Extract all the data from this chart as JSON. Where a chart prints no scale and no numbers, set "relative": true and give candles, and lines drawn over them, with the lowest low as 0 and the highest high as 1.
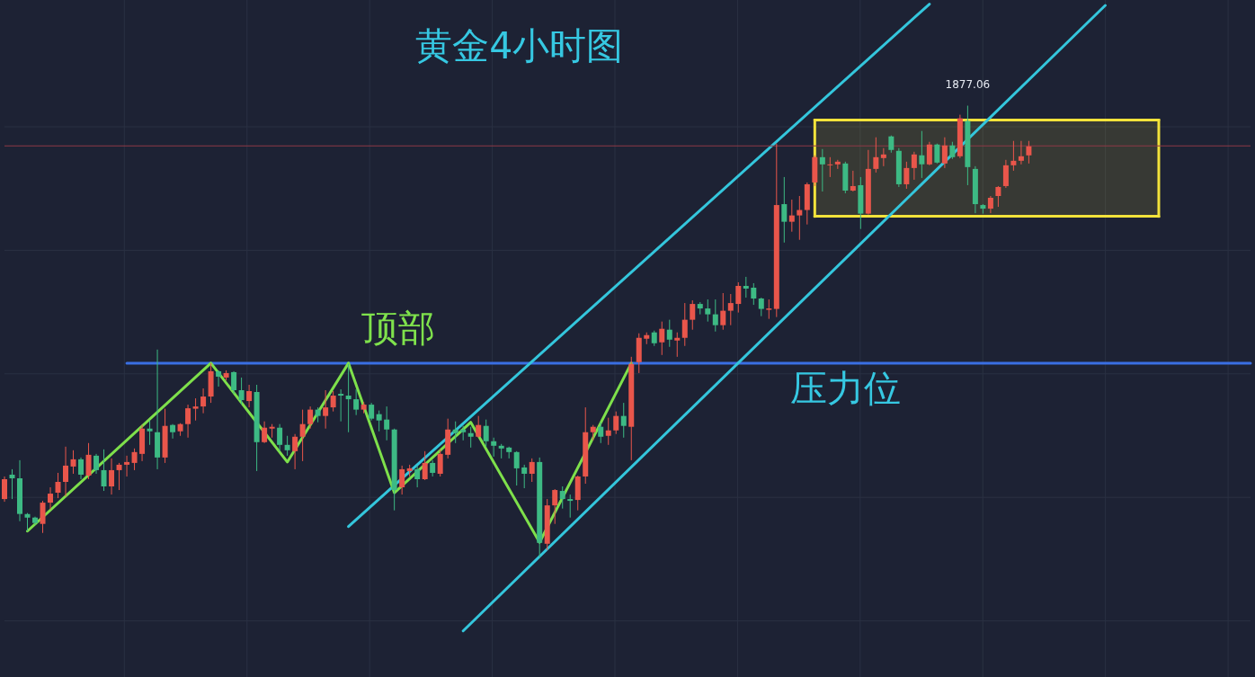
{
  "chart_data": {
    "type": "candlestick",
    "title": "黄金4小时图",
    "relative": true,
    "grid": true,
    "annotations": [
      "顶部",
      {
        "text": "1877.06",
        "y": 1
      }
    ],
    "categories": [
      null,
      null,
      null,
      null,
      null,
      null,
      null,
      null,
      null,
      null,
      null,
      null,
      null,
      null,
      null,
      null,
      null,
      null,
      null,
      null,
      null,
      null,
      null,
      null,
      null,
      null,
      null,
      null,
      null,
      null,
      null,
      null,
      null,
      null,
      null,
      null,
      null,
      null,
      null,
      null,
      null,
      null,
      null,
      null,
      null,
      null,
      null,
      null,
      null,
      null,
      null,
      null,
      null,
      null,
      null,
      null,
      null,
      null,
      null,
      null,
      null,
      null,
      null,
      null,
      null,
      null,
      null,
      null,
      null,
      null,
      null,
      null,
      null,
      null,
      null,
      null,
      null,
      null,
      null,
      null,
      null,
      null,
      null,
      null,
      null,
      null,
      null,
      null,
      null,
      null,
      null,
      null,
      null,
      null,
      null,
      null,
      null,
      null,
      null,
      null,
      null,
      null,
      null,
      null,
      null,
      null,
      null,
      null,
      null,
      null,
      null,
      null,
      null,
      null,
      null,
      null,
      null,
      null,
      null,
      null,
      null,
      null,
      null,
      null,
      null,
      null,
      null,
      null,
      null,
      null,
      null,
      null,
      null,
      null,
      null,
      null,
      null,
      null,
      null,
      null,
      null,
      null,
      null,
      null,
      null,
      null,
      null,
      null,
      null,
      null,
      null,
      null,
      null,
      null,
      null,
      null,
      null,
      null,
      null,
      null,
      null,
      null,
      null,
      null
    ],
    "ohlc": [
      [
        0.129,
        0.179,
        0.123,
        0.173
      ],
      [
        0.183,
        0.195,
        0.129,
        0.175
      ],
      [
        0.175,
        0.215,
        0.08,
        0.096
      ],
      [
        0.096,
        0.098,
        0.058,
        0.088
      ],
      [
        0.088,
        0.09,
        0.072,
        0.076
      ],
      [
        0.074,
        0.125,
        0.054,
        0.121
      ],
      [
        0.121,
        0.155,
        0.106,
        0.141
      ],
      [
        0.143,
        0.187,
        0.131,
        0.167
      ],
      [
        0.167,
        0.245,
        0.135,
        0.203
      ],
      [
        0.201,
        0.237,
        0.185,
        0.217
      ],
      [
        0.217,
        0.221,
        0.173,
        0.183
      ],
      [
        0.181,
        0.253,
        0.173,
        0.227
      ],
      [
        0.225,
        0.229,
        0.185,
        0.193
      ],
      [
        0.193,
        0.239,
        0.147,
        0.157
      ],
      [
        0.157,
        0.219,
        0.139,
        0.193
      ],
      [
        0.193,
        0.209,
        0.149,
        0.205
      ],
      [
        0.205,
        0.225,
        0.179,
        0.211
      ],
      [
        0.209,
        0.241,
        0.193,
        0.233
      ],
      [
        0.229,
        0.293,
        0.213,
        0.285
      ],
      [
        0.285,
        0.303,
        0.249,
        0.279
      ],
      [
        0.277,
        0.46,
        0.195,
        0.221
      ],
      [
        0.221,
        0.329,
        0.209,
        0.291
      ],
      [
        0.293,
        0.295,
        0.263,
        0.277
      ],
      [
        0.279,
        0.297,
        0.269,
        0.295
      ],
      [
        0.295,
        0.338,
        0.265,
        0.33
      ],
      [
        0.329,
        0.352,
        0.303,
        0.334
      ],
      [
        0.334,
        0.374,
        0.319,
        0.356
      ],
      [
        0.356,
        0.43,
        0.342,
        0.412
      ],
      [
        0.412,
        0.414,
        0.378,
        0.4
      ],
      [
        0.398,
        0.414,
        0.392,
        0.408
      ],
      [
        0.41,
        0.412,
        0.362,
        0.37
      ],
      [
        0.37,
        0.398,
        0.338,
        0.348
      ],
      [
        0.346,
        0.382,
        0.332,
        0.368
      ],
      [
        0.366,
        0.382,
        0.191,
        0.255
      ],
      [
        0.255,
        0.301,
        0.253,
        0.287
      ],
      [
        0.285,
        0.295,
        0.265,
        0.289
      ],
      [
        0.287,
        0.295,
        0.235,
        0.249
      ],
      [
        0.249,
        0.269,
        0.225,
        0.237
      ],
      [
        0.235,
        0.273,
        0.195,
        0.267
      ],
      [
        0.267,
        0.327,
        0.213,
        0.295
      ],
      [
        0.295,
        0.334,
        0.285,
        0.327
      ],
      [
        0.327,
        0.332,
        0.299,
        0.313
      ],
      [
        0.313,
        0.37,
        0.285,
        0.332
      ],
      [
        0.332,
        0.368,
        0.323,
        0.358
      ],
      [
        0.362,
        0.372,
        0.301,
        0.358
      ],
      [
        0.358,
        0.428,
        0.277,
        0.35
      ],
      [
        0.35,
        0.372,
        0.315,
        0.327
      ],
      [
        0.327,
        0.344,
        0.319,
        0.338
      ],
      [
        0.338,
        0.342,
        0.303,
        0.307
      ],
      [
        0.317,
        0.325,
        0.279,
        0.303
      ],
      [
        0.305,
        0.334,
        0.259,
        0.283
      ],
      [
        0.283,
        0.285,
        0.104,
        0.149
      ],
      [
        0.155,
        0.203,
        0.139,
        0.195
      ],
      [
        0.191,
        0.205,
        0.179,
        0.197
      ],
      [
        0.195,
        0.203,
        0.155,
        0.173
      ],
      [
        0.173,
        0.235,
        0.171,
        0.209
      ],
      [
        0.209,
        0.215,
        0.179,
        0.187
      ],
      [
        0.185,
        0.239,
        0.179,
        0.229
      ],
      [
        0.227,
        0.307,
        0.219,
        0.283
      ],
      [
        0.283,
        0.301,
        0.253,
        0.275
      ],
      [
        0.283,
        0.291,
        0.259,
        0.277
      ],
      [
        0.275,
        0.289,
        0.243,
        0.267
      ],
      [
        0.267,
        0.313,
        0.265,
        0.293
      ],
      [
        0.291,
        0.305,
        0.245,
        0.257
      ],
      [
        0.257,
        0.265,
        0.223,
        0.247
      ],
      [
        0.247,
        0.251,
        0.219,
        0.241
      ],
      [
        0.243,
        0.245,
        0.219,
        0.233
      ],
      [
        0.233,
        0.235,
        0.159,
        0.197
      ],
      [
        0.199,
        0.205,
        0.153,
        0.185
      ],
      [
        0.185,
        0.219,
        0.167,
        0.211
      ],
      [
        0.211,
        0.221,
        0,
        0.032
      ],
      [
        0.03,
        0.129,
        0.016,
        0.115
      ],
      [
        0.115,
        0.151,
        0.074,
        0.149
      ],
      [
        0.147,
        0.157,
        0.108,
        0.129
      ],
      [
        0.129,
        0.139,
        0.088,
        0.125
      ],
      [
        0.127,
        0.181,
        0.104,
        0.179
      ],
      [
        0.179,
        0.332,
        0.163,
        0.277
      ],
      [
        0.277,
        0.293,
        0.259,
        0.289
      ],
      [
        0.289,
        0.299,
        0.253,
        0.267
      ],
      [
        0.269,
        0.309,
        0.249,
        0.281
      ],
      [
        0.281,
        0.323,
        0.273,
        0.313
      ],
      [
        0.313,
        0.342,
        0.265,
        0.291
      ],
      [
        0.289,
        0.444,
        0.215,
        0.428
      ],
      [
        0.432,
        0.496,
        0.408,
        0.486
      ],
      [
        0.484,
        0.498,
        0.472,
        0.492
      ],
      [
        0.498,
        0.502,
        0.468,
        0.474
      ],
      [
        0.476,
        0.522,
        0.448,
        0.506
      ],
      [
        0.504,
        0.526,
        0.466,
        0.482
      ],
      [
        0.48,
        0.498,
        0.444,
        0.486
      ],
      [
        0.486,
        0.563,
        0.468,
        0.526
      ],
      [
        0.526,
        0.569,
        0.504,
        0.561
      ],
      [
        0.561,
        0.565,
        0.538,
        0.551
      ],
      [
        0.551,
        0.571,
        0.522,
        0.538
      ],
      [
        0.538,
        0.571,
        0.5,
        0.514
      ],
      [
        0.514,
        0.585,
        0.504,
        0.546
      ],
      [
        0.546,
        0.583,
        0.514,
        0.563
      ],
      [
        0.561,
        0.609,
        0.542,
        0.601
      ],
      [
        0.601,
        0.621,
        0.575,
        0.595
      ],
      [
        0.597,
        0.607,
        0.559,
        0.573
      ],
      [
        0.573,
        0.575,
        0.534,
        0.55
      ],
      [
        0.548,
        0.571,
        0.528,
        0.551
      ],
      [
        0.55,
        0.916,
        0.532,
        0.78
      ],
      [
        0.782,
        0.842,
        0.697,
        0.743
      ],
      [
        0.743,
        0.792,
        0.721,
        0.757
      ],
      [
        0.757,
        0.8,
        0.703,
        0.769
      ],
      [
        0.769,
        0.83,
        0.737,
        0.826
      ],
      [
        0.83,
        0.89,
        0.822,
        0.886
      ],
      [
        0.886,
        0.904,
        0.81,
        0.87
      ],
      [
        0.868,
        0.886,
        0.842,
        0.87
      ],
      [
        0.87,
        0.88,
        0.86,
        0.876
      ],
      [
        0.872,
        0.876,
        0.806,
        0.812
      ],
      [
        0.812,
        0.856,
        0.81,
        0.822
      ],
      [
        0.824,
        0.842,
        0.727,
        0.761
      ],
      [
        0.761,
        0.902,
        0.759,
        0.86
      ],
      [
        0.86,
        0.93,
        0.852,
        0.886
      ],
      [
        0.884,
        0.906,
        0.866,
        0.892
      ],
      [
        0.932,
        0.934,
        0.896,
        0.902
      ],
      [
        0.9,
        0.906,
        0.82,
        0.826
      ],
      [
        0.826,
        0.876,
        0.816,
        0.862
      ],
      [
        0.862,
        0.898,
        0.836,
        0.892
      ],
      [
        0.89,
        0.944,
        0.84,
        0.87
      ],
      [
        0.87,
        0.92,
        0.868,
        0.914
      ],
      [
        0.914,
        0.916,
        0.872,
        0.874
      ],
      [
        0.872,
        0.93,
        0.862,
        0.912
      ],
      [
        0.912,
        0.92,
        0.882,
        0.886
      ],
      [
        0.888,
        0.98,
        0.884,
        0.972
      ],
      [
        0.966,
        1,
        0.824,
        0.864
      ],
      [
        0.86,
        0.866,
        0.762,
        0.782
      ],
      [
        0.78,
        0.782,
        0.761,
        0.772
      ],
      [
        0.772,
        0.8,
        0.762,
        0.796
      ],
      [
        0.8,
        0.822,
        0.776,
        0.82
      ],
      [
        0.822,
        0.88,
        0.818,
        0.868
      ],
      [
        0.868,
        0.922,
        0.856,
        0.878
      ],
      [
        0.878,
        0.922,
        0.87,
        0.888
      ],
      [
        0.89,
        0.922,
        0.872,
        0.91
      ],
      null,
      null,
      null,
      null,
      null,
      null,
      null,
      null,
      null,
      null,
      null,
      null,
      null,
      null,
      null,
      null,
      null,
      null,
      null,
      null,
      null,
      null,
      null,
      null,
      null,
      null,
      null,
      null,
      null
    ],
    "colors": [
      "#e9564b",
      "#3dba84",
      "#3dba84",
      "#3dba84",
      "#3dba84",
      "#e9564b",
      "#e9564b",
      "#e9564b",
      "#e9564b",
      "#e9564b",
      "#3dba84",
      "#e9564b",
      "#3dba84",
      "#3dba84",
      "#e9564b",
      "#e9564b",
      "#e9564b",
      "#e9564b",
      "#e9564b",
      "#3dba84",
      "#3dba84",
      "#e9564b",
      "#3dba84",
      "#e9564b",
      "#e9564b",
      "#e9564b",
      "#e9564b",
      "#e9564b",
      "#3dba84",
      "#e9564b",
      "#3dba84",
      "#3dba84",
      "#e9564b",
      "#3dba84",
      "#e9564b",
      "#e9564b",
      "#3dba84",
      "#3dba84",
      "#e9564b",
      "#e9564b",
      "#e9564b",
      "#3dba84",
      "#e9564b",
      "#e9564b",
      "#3dba84",
      "#3dba84",
      "#3dba84",
      "#e9564b",
      "#3dba84",
      "#3dba84",
      "#3dba84",
      "#3dba84",
      "#e9564b",
      "#e9564b",
      "#3dba84",
      "#e9564b",
      "#3dba84",
      "#e9564b",
      "#e9564b",
      "#3dba84",
      "#3dba84",
      "#3dba84",
      "#e9564b",
      "#3dba84",
      "#3dba84",
      "#3dba84",
      "#3dba84",
      "#3dba84",
      "#3dba84",
      "#e9564b",
      "#3dba84",
      "#e9564b",
      "#e9564b",
      "#3dba84",
      "#3dba84",
      "#e9564b",
      "#e9564b",
      "#e9564b",
      "#3dba84",
      "#e9564b",
      "#e9564b",
      "#3dba84",
      "#e9564b",
      "#e9564b",
      "#e9564b",
      "#3dba84",
      "#e9564b",
      "#3dba84",
      "#e9564b",
      "#e9564b",
      "#e9564b",
      "#3dba84",
      "#3dba84",
      "#3dba84",
      "#e9564b",
      "#e9564b",
      "#e9564b",
      "#3dba84",
      "#3dba84",
      "#3dba84",
      "#e9564b",
      "#e9564b",
      "#3dba84",
      "#e9564b",
      "#e9564b",
      "#e9564b",
      "#e9564b",
      "#3dba84",
      "#e9564b",
      "#e9564b",
      "#3dba84",
      "#e9564b",
      "#3dba84",
      "#e9564b",
      "#e9564b",
      "#e9564b",
      "#3dba84",
      "#3dba84",
      "#e9564b",
      "#e9564b",
      "#3dba84",
      "#e9564b",
      "#3dba84",
      "#e9564b",
      "#3dba84",
      "#e9564b",
      "#3dba84",
      "#3dba84",
      "#3dba84",
      "#e9564b",
      "#e9564b",
      "#e9564b",
      "#e9564b",
      "#e9564b",
      "#e9564b",
      null,
      null,
      null,
      null,
      null,
      null,
      null,
      null,
      null,
      null,
      null,
      null,
      null,
      null,
      null,
      null,
      null,
      null,
      null,
      null,
      null,
      null,
      null,
      null,
      null,
      null,
      null,
      null,
      null
    ],
    "series": [
      {
        "type": "line",
        "color": "#f3e33b",
        "values": [
          null,
          null,
          null,
          null,
          null,
          null,
          null,
          null,
          null,
          null,
          null,
          null,
          null,
          null,
          null,
          null,
          null,
          null,
          null,
          null,
          null,
          null,
          null,
          null,
          null,
          null,
          null,
          null,
          null,
          null,
          null,
          null,
          null,
          null,
          null,
          null,
          null,
          null,
          null,
          null,
          null,
          null,
          null,
          null,
          null,
          null,
          null,
          null,
          null,
          null,
          null,
          null,
          null,
          null,
          null,
          null,
          null,
          null,
          null,
          null,
          null,
          null,
          null,
          null,
          null,
          null,
          null,
          null,
          null,
          null,
          null,
          null,
          null,
          null,
          null,
          null,
          null,
          null,
          null,
          null,
          null,
          null,
          null,
          null,
          null,
          null,
          null,
          null,
          null,
          null,
          null,
          null,
          null,
          null,
          null,
          null,
          null,
          null,
          null,
          null,
          null,
          null,
          null,
          null,
          null,
          null,
          0.968,
          null,
          null,
          null,
          null,
          null,
          null,
          null,
          null,
          null,
          null,
          null,
          null,
          null,
          null,
          null,
          null,
          null,
          null,
          null,
          null,
          null,
          null,
          null,
          null,
          null,
          null,
          null,
          null,
          null,
          null,
          null,
          null,
          null,
          null,
          null,
          null,
          null,
          null,
          null,
          null,
          null,
          null,
          null,
          null,
          0.968,
          null,
          null,
          null,
          null,
          null,
          null,
          null,
          null,
          null,
          null,
          null,
          null
        ],
        "upper": [
          null,
          null,
          null,
          null,
          null,
          null,
          null,
          null,
          null,
          null,
          null,
          null,
          null,
          null,
          null,
          null,
          null,
          null,
          null,
          null,
          null,
          null,
          null,
          null,
          null,
          null,
          null,
          null,
          null,
          null,
          null,
          null,
          null,
          null,
          null,
          null,
          null,
          null,
          null,
          null,
          null,
          null,
          null,
          null,
          null,
          null,
          null,
          null,
          null,
          null,
          null,
          null,
          null,
          null,
          null,
          null,
          null,
          null,
          null,
          null,
          null,
          null,
          null,
          null,
          null,
          null,
          null,
          null,
          null,
          null,
          null,
          null,
          null,
          null,
          null,
          null,
          null,
          null,
          null,
          null,
          null,
          null,
          null,
          null,
          null,
          null,
          null,
          null,
          null,
          null,
          null,
          null,
          null,
          null,
          null,
          null,
          null,
          null,
          null,
          null,
          null,
          null,
          null,
          null,
          null,
          null,
          0.968,
          null,
          null,
          null,
          null,
          null,
          null,
          null,
          null,
          null,
          null,
          null,
          null,
          null,
          null,
          null,
          null,
          null,
          null,
          null,
          null,
          null,
          null,
          null,
          null,
          null,
          null,
          null,
          null,
          null,
          null,
          null,
          null,
          null,
          null,
          null,
          null,
          null,
          null,
          null,
          null,
          null,
          null,
          null,
          null,
          0.968,
          null,
          null,
          null,
          null,
          null,
          null,
          null,
          null,
          null,
          null,
          null,
          null
        ],
        "lower": [
          null,
          null,
          null,
          null,
          null,
          null,
          null,
          null,
          null,
          null,
          null,
          null,
          null,
          null,
          null,
          null,
          null,
          null,
          null,
          null,
          null,
          null,
          null,
          null,
          null,
          null,
          null,
          null,
          null,
          null,
          null,
          null,
          null,
          null,
          null,
          null,
          null,
          null,
          null,
          null,
          null,
          null,
          null,
          null,
          null,
          null,
          null,
          null,
          null,
          null,
          null,
          null,
          null,
          null,
          null,
          null,
          null,
          null,
          null,
          null,
          null,
          null,
          null,
          null,
          null,
          null,
          null,
          null,
          null,
          null,
          null,
          null,
          null,
          null,
          null,
          null,
          null,
          null,
          null,
          null,
          null,
          null,
          null,
          null,
          null,
          null,
          null,
          null,
          null,
          null,
          null,
          null,
          null,
          null,
          null,
          null,
          null,
          null,
          null,
          null,
          null,
          null,
          null,
          null,
          null,
          null,
          0.755,
          null,
          null,
          null,
          null,
          null,
          null,
          null,
          null,
          null,
          null,
          null,
          null,
          null,
          null,
          null,
          null,
          null,
          null,
          null,
          null,
          null,
          null,
          null,
          null,
          null,
          null,
          null,
          null,
          null,
          null,
          null,
          null,
          null,
          null,
          null,
          null,
          null,
          null,
          null,
          null,
          null,
          null,
          null,
          null,
          0.755,
          null,
          null,
          null,
          null,
          null,
          null,
          null,
          null,
          null,
          null,
          null,
          null
        ],
        "errors": [
          null,
          null,
          null,
          null,
          null,
          null,
          null,
          null,
          null,
          null,
          null,
          null,
          null,
          null,
          null,
          null,
          null,
          null,
          null,
          null,
          null,
          null,
          null,
          null,
          null,
          null,
          null,
          null,
          null,
          null,
          null,
          null,
          null,
          null,
          null,
          null,
          null,
          null,
          null,
          null,
          null,
          null,
          null,
          null,
          null,
          null,
          null,
          null,
          null,
          null,
          null,
          null,
          null,
          null,
          null,
          null,
          null,
          null,
          null,
          null,
          null,
          null,
          null,
          null,
          null,
          null,
          null,
          null,
          null,
          null,
          null,
          null,
          null,
          null,
          null,
          null,
          null,
          null,
          null,
          null,
          null,
          null,
          null,
          null,
          null,
          null,
          null,
          null,
          null,
          null,
          null,
          null,
          null,
          null,
          null,
          null,
          null,
          null,
          null,
          null,
          null,
          null,
          null,
          null,
          null,
          null,
          [
            0.755,
            0.968
          ],
          null,
          null,
          null,
          null,
          null,
          null,
          null,
          null,
          null,
          null,
          null,
          null,
          null,
          null,
          null,
          null,
          null,
          null,
          null,
          null,
          null,
          null,
          null,
          null,
          null,
          null,
          null,
          null,
          null,
          null,
          null,
          null,
          null,
          null,
          null,
          null,
          null,
          null,
          null,
          null,
          null,
          null,
          null,
          null,
          [
            0.755,
            0.968
          ],
          null,
          null,
          null,
          null,
          null,
          null,
          null,
          null,
          null,
          null,
          null,
          null
        ]
      },
      {
        "type": "line",
        "color": "#f3e33b",
        "values": [
          null,
          null,
          null,
          null,
          null,
          null,
          null,
          null,
          null,
          null,
          null,
          null,
          null,
          null,
          null,
          null,
          null,
          null,
          null,
          null,
          null,
          null,
          null,
          null,
          null,
          null,
          null,
          null,
          null,
          null,
          null,
          null,
          null,
          null,
          null,
          null,
          null,
          null,
          null,
          null,
          null,
          null,
          null,
          null,
          null,
          null,
          null,
          null,
          null,
          null,
          null,
          null,
          null,
          null,
          null,
          null,
          null,
          null,
          null,
          null,
          null,
          null,
          null,
          null,
          null,
          null,
          null,
          null,
          null,
          null,
          null,
          null,
          null,
          null,
          null,
          null,
          null,
          null,
          null,
          null,
          null,
          null,
          null,
          null,
          null,
          null,
          null,
          null,
          null,
          null,
          null,
          null,
          null,
          null,
          null,
          null,
          null,
          null,
          null,
          null,
          null,
          null,
          null,
          null,
          null,
          null,
          0.755,
          null,
          null,
          null,
          null,
          null,
          null,
          null,
          null,
          null,
          null,
          null,
          null,
          null,
          null,
          null,
          null,
          null,
          null,
          null,
          null,
          null,
          null,
          null,
          null,
          null,
          null,
          null,
          null,
          null,
          null,
          null,
          null,
          null,
          null,
          null,
          null,
          null,
          null,
          null,
          null,
          null,
          null,
          null,
          null,
          0.755,
          null,
          null,
          null,
          null,
          null,
          null,
          null,
          null,
          null,
          null,
          null,
          null
        ]
      },
      {
        "type": "line",
        "name": "压力位",
        "color": "#3a6fe3",
        "values": [
          null,
          null,
          null,
          null,
          null,
          null,
          null,
          null,
          null,
          null,
          null,
          null,
          null,
          null,
          null,
          null,
          0.43,
          null,
          null,
          null,
          null,
          null,
          null,
          null,
          null,
          null,
          null,
          null,
          null,
          null,
          null,
          null,
          null,
          null,
          null,
          null,
          null,
          null,
          null,
          null,
          null,
          null,
          null,
          null,
          null,
          null,
          null,
          null,
          null,
          null,
          null,
          null,
          null,
          null,
          null,
          null,
          null,
          null,
          null,
          null,
          null,
          null,
          null,
          null,
          null,
          null,
          null,
          null,
          null,
          null,
          null,
          null,
          null,
          null,
          null,
          null,
          null,
          null,
          null,
          null,
          null,
          null,
          null,
          null,
          null,
          null,
          null,
          null,
          null,
          null,
          null,
          null,
          null,
          null,
          null,
          null,
          null,
          null,
          null,
          null,
          null,
          null,
          null,
          null,
          null,
          null,
          null,
          null,
          null,
          null,
          null,
          null,
          null,
          null,
          null,
          null,
          null,
          null,
          null,
          null,
          null,
          null,
          null,
          null,
          null,
          null,
          null,
          null,
          null,
          null,
          null,
          null,
          null,
          null,
          null,
          null,
          null,
          null,
          null,
          null,
          null,
          null,
          null,
          null,
          null,
          null,
          null,
          null,
          null,
          null,
          null,
          null,
          null,
          null,
          null,
          null,
          null,
          null,
          null,
          null,
          null,
          null,
          null,
          0.43
        ]
      },
      {
        "type": "line",
        "color": "#34c6dc",
        "values": [
          null,
          null,
          null,
          null,
          null,
          null,
          null,
          null,
          null,
          null,
          null,
          null,
          null,
          null,
          null,
          null,
          null,
          null,
          null,
          null,
          null,
          null,
          null,
          null,
          null,
          null,
          null,
          null,
          null,
          null,
          null,
          null,
          null,
          null,
          null,
          null,
          null,
          null,
          null,
          null,
          null,
          null,
          null,
          null,
          null,
          0.068,
          null,
          null,
          null,
          null,
          null,
          null,
          null,
          null,
          null,
          null,
          null,
          null,
          null,
          null,
          null,
          null,
          null,
          null,
          null,
          null,
          null,
          null,
          null,
          null,
          null,
          null,
          null,
          null,
          null,
          null,
          null,
          null,
          null,
          null,
          null,
          null,
          null,
          null,
          null,
          null,
          null,
          null,
          null,
          null,
          null,
          null,
          null,
          null,
          null,
          null,
          null,
          null,
          null,
          null,
          null,
          null,
          null,
          null,
          null,
          null,
          null,
          null,
          null,
          null,
          null,
          null,
          null,
          null,
          null,
          null,
          null,
          null,
          null,
          null,
          null,
          1.225,
          null,
          null,
          null,
          null,
          null,
          null,
          null,
          null,
          null,
          null,
          null,
          null,
          null,
          null,
          null,
          null,
          null,
          null,
          null,
          null,
          null,
          null,
          null,
          null,
          null,
          null,
          null,
          null,
          null,
          null,
          null,
          null,
          null,
          null,
          null,
          null,
          null,
          null,
          null,
          null,
          null,
          null
        ]
      },
      {
        "type": "line",
        "color": "#34c6dc",
        "values": [
          null,
          null,
          null,
          null,
          null,
          null,
          null,
          null,
          null,
          null,
          null,
          null,
          null,
          null,
          null,
          null,
          null,
          null,
          null,
          null,
          null,
          null,
          null,
          null,
          null,
          null,
          null,
          null,
          null,
          null,
          null,
          null,
          null,
          null,
          null,
          null,
          null,
          null,
          null,
          null,
          null,
          null,
          null,
          null,
          null,
          null,
          null,
          null,
          null,
          null,
          null,
          null,
          null,
          null,
          null,
          null,
          null,
          null,
          null,
          null,
          -0.163,
          null,
          null,
          null,
          null,
          null,
          null,
          null,
          null,
          null,
          null,
          null,
          null,
          null,
          null,
          null,
          null,
          null,
          null,
          null,
          null,
          null,
          null,
          null,
          null,
          null,
          null,
          null,
          null,
          null,
          null,
          null,
          null,
          null,
          null,
          null,
          null,
          null,
          null,
          null,
          null,
          null,
          null,
          null,
          null,
          null,
          null,
          null,
          null,
          null,
          null,
          null,
          null,
          null,
          null,
          null,
          null,
          null,
          null,
          null,
          null,
          null,
          null,
          null,
          null,
          null,
          null,
          null,
          null,
          null,
          null,
          null,
          null,
          null,
          null,
          null,
          null,
          null,
          null,
          null,
          null,
          null,
          null,
          null,
          1.222,
          null,
          null,
          null,
          null,
          null,
          null,
          null,
          null,
          null,
          null,
          null,
          null,
          null,
          null,
          null,
          null,
          null,
          null,
          null
        ]
      },
      {
        "type": "line",
        "color": "#7ee04b",
        "values": [
          null,
          null,
          null,
          0.058,
          null,
          null,
          null,
          null,
          null,
          null,
          null,
          null,
          null,
          null,
          null,
          null,
          null,
          null,
          null,
          null,
          null,
          null,
          null,
          null,
          null,
          null,
          null,
          0.43,
          null,
          null,
          null,
          null,
          null,
          null,
          null,
          null,
          null,
          0.211,
          null,
          null,
          null,
          null,
          null,
          null,
          null,
          0.43,
          null,
          null,
          null,
          null,
          null,
          0.143,
          null,
          null,
          null,
          null,
          null,
          null,
          null,
          null,
          null,
          0.299,
          null,
          null,
          null,
          null,
          null,
          null,
          null,
          null,
          0.033,
          null,
          null,
          null,
          null,
          null,
          null,
          null,
          null,
          null,
          null,
          null,
          0.43,
          null,
          null,
          null,
          null,
          null,
          null,
          null,
          null,
          null,
          null,
          null,
          null,
          null,
          null,
          null,
          null,
          null,
          null,
          null,
          null,
          null,
          null,
          null,
          null,
          null,
          null,
          null,
          null,
          null,
          null,
          null,
          null,
          null,
          null,
          null,
          null,
          null,
          null,
          null,
          null,
          null,
          null,
          null,
          null,
          null,
          null,
          null,
          null,
          null,
          null,
          null,
          null,
          null,
          null,
          null,
          null,
          null,
          null,
          null,
          null,
          null,
          null,
          null,
          null,
          null,
          null,
          null,
          null,
          null,
          null,
          null,
          null,
          null,
          null,
          null,
          null,
          null,
          null,
          null,
          null,
          null
        ]
      }
    ],
    "ref_lines": [
      {
        "axis": "y",
        "value": 0.911,
        "color": "#8e3a46"
      }
    ]
  }
}
